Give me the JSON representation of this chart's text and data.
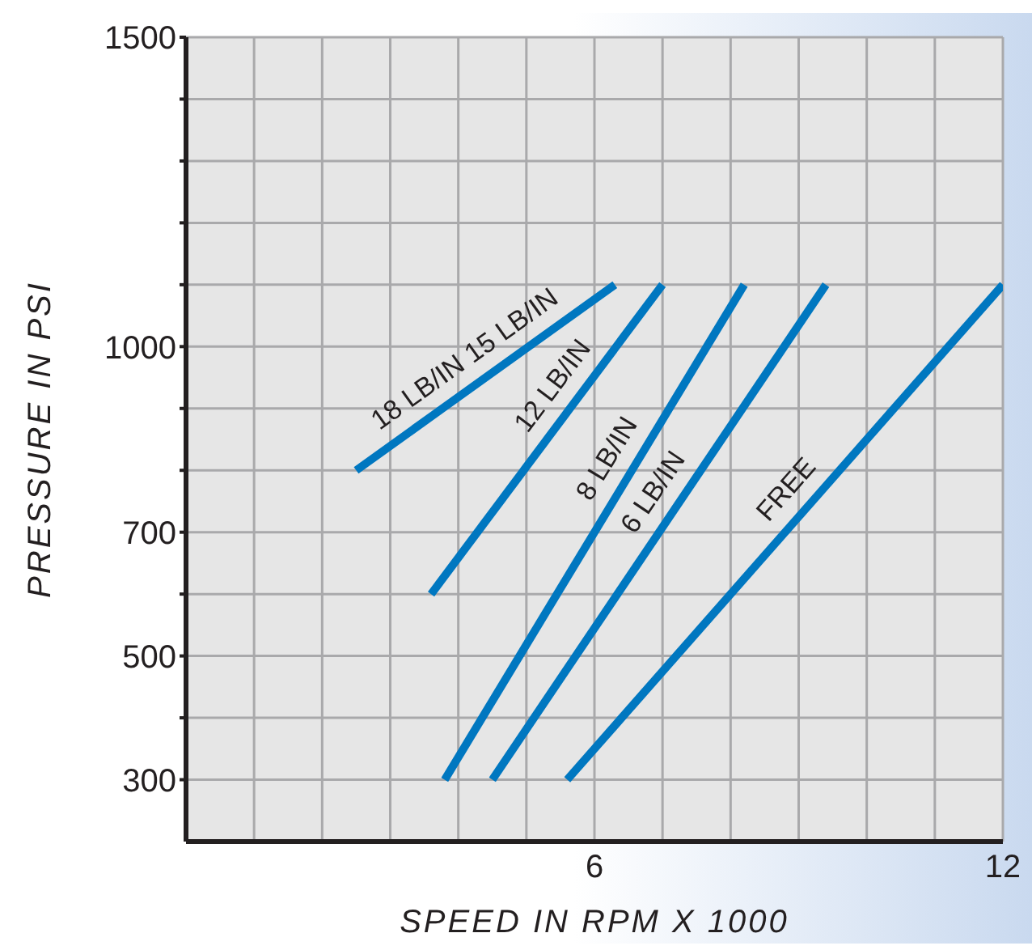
{
  "chart_data": {
    "type": "line",
    "xlabel": "SPEED IN RPM X 1000",
    "ylabel": "PRESSURE IN PSI",
    "series": [
      {
        "name": "18 LB/IN",
        "color": "#0077c0",
        "x": [
          2.5,
          6.3
        ],
        "values": [
          800,
          1100
        ]
      },
      {
        "name": "12 LB/IN",
        "color": "#0077c0",
        "x": [
          3.6,
          7.0
        ],
        "values": [
          600,
          1100
        ]
      },
      {
        "name": "8 LB/IN",
        "color": "#0077c0",
        "x": [
          3.8,
          8.2
        ],
        "values": [
          300,
          1100
        ]
      },
      {
        "name": "6 LB/IN",
        "color": "#0077c0",
        "x": [
          4.5,
          9.4
        ],
        "values": [
          300,
          1100
        ]
      },
      {
        "name": "FREE",
        "color": "#0077c0",
        "x": [
          5.6,
          12
        ],
        "values": [
          300,
          1100
        ]
      }
    ],
    "annotations": [
      {
        "text": "15 LB/IN",
        "x": 5.0,
        "y": 1000
      }
    ],
    "xlim": [
      0,
      12
    ],
    "xticks": [
      {
        "value": 1,
        "label": null
      },
      {
        "value": 2,
        "label": null
      },
      {
        "value": 3,
        "label": null
      },
      {
        "value": 4,
        "label": null
      },
      {
        "value": 5,
        "label": null
      },
      6,
      {
        "value": 7,
        "label": null
      },
      {
        "value": 8,
        "label": null
      },
      {
        "value": 9,
        "label": null
      },
      {
        "value": 10,
        "label": null
      },
      {
        "value": 11,
        "label": null
      },
      12
    ],
    "ylim": [
      200,
      1500
    ],
    "yticks": [
      300,
      {
        "value": 400,
        "label": null
      },
      500,
      {
        "value": 600,
        "label": null
      },
      700,
      {
        "value": 800,
        "label": null
      },
      {
        "value": 900,
        "label": null
      },
      1000,
      {
        "value": 1100,
        "label": null
      },
      {
        "value": 1200,
        "label": null
      },
      {
        "value": 1300,
        "label": null
      },
      {
        "value": 1400,
        "label": null
      },
      1500
    ],
    "grid": true,
    "legend": false,
    "marker": "none",
    "line_style": "solid"
  }
}
